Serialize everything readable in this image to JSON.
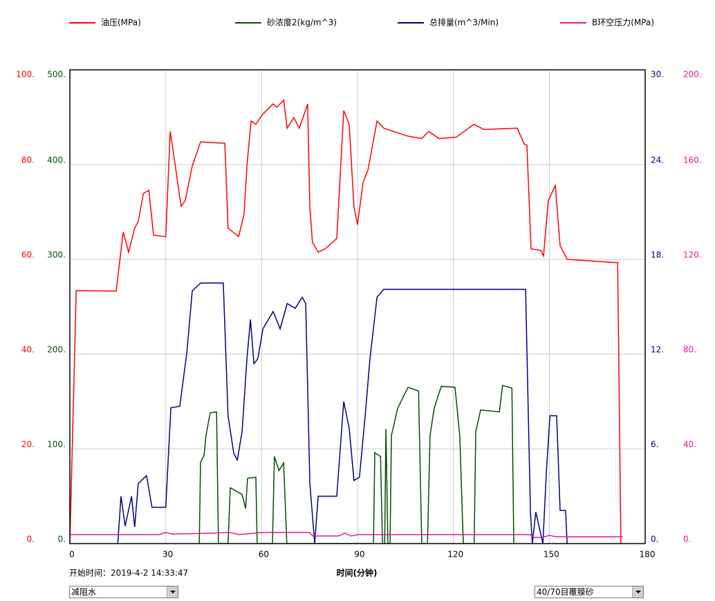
{
  "chart_data": {
    "type": "line",
    "x_label": "时间(分钟)",
    "xlim": [
      0,
      180
    ],
    "xticks": [
      0,
      30,
      60,
      90,
      120,
      150,
      180
    ],
    "ylim": [
      0,
      100
    ],
    "yticks": [
      {
        "value": 0,
        "label": "0."
      },
      {
        "value": 20,
        "label": "20."
      },
      {
        "value": 40,
        "label": "40."
      },
      {
        "value": 60,
        "label": "60."
      },
      {
        "value": 80,
        "label": "80."
      },
      {
        "value": 100,
        "label": "100."
      }
    ],
    "y3lim": [
      0,
      500
    ],
    "y3ticks": [
      {
        "value": 0,
        "label": "0."
      },
      {
        "value": 100,
        "label": "100."
      },
      {
        "value": 200,
        "label": "200."
      },
      {
        "value": 300,
        "label": "300."
      },
      {
        "value": 400,
        "label": "400."
      },
      {
        "value": 500,
        "label": "500."
      }
    ],
    "y2lim": [
      0,
      30
    ],
    "y2ticks": [
      {
        "value": 0,
        "label": "0."
      },
      {
        "value": 6,
        "label": "6."
      },
      {
        "value": 12,
        "label": "12."
      },
      {
        "value": 18,
        "label": "18."
      },
      {
        "value": 24,
        "label": "24."
      },
      {
        "value": 30,
        "label": "30."
      }
    ],
    "y4lim": [
      0,
      200
    ],
    "y4ticks": [
      {
        "value": 0,
        "label": "0."
      },
      {
        "value": 40,
        "label": "40."
      },
      {
        "value": 80,
        "label": "80."
      },
      {
        "value": 120,
        "label": "120."
      },
      {
        "value": 160,
        "label": "160."
      },
      {
        "value": 200,
        "label": "200."
      }
    ],
    "grid": true,
    "series": [
      {
        "name": "油压(MPa)",
        "color": "#ff0000",
        "axis": "y",
        "x": [
          0,
          2,
          14.5,
          16.7,
          18.4,
          20.3,
          21.4,
          23,
          24.7,
          26.2,
          30,
          31.4,
          32.7,
          34.8,
          36.1,
          38.3,
          40.9,
          48.5,
          49.5,
          52.8,
          54.5,
          55.4,
          56.7,
          58.2,
          60.4,
          63.6,
          64.7,
          66.9,
          68,
          70.1,
          71.8,
          74.4,
          75.1,
          75.9,
          77.7,
          79.8,
          83.5,
          85.7,
          87.4,
          88.9,
          90,
          91.7,
          93.3,
          96.1,
          98.2,
          105.8,
          110.1,
          112.3,
          115.5,
          120.9,
          126.4,
          129.6,
          140,
          142.1,
          143,
          144.3,
          147.3,
          148.2,
          149.7,
          151.9,
          153.4,
          155.6,
          171.4,
          172.4
        ],
        "values": [
          0,
          53.4,
          53.3,
          65.8,
          61.5,
          66.6,
          68,
          73.9,
          74.6,
          65.1,
          64.8,
          87,
          81.2,
          71.2,
          72.4,
          79.7,
          84.8,
          84.5,
          66.6,
          64.8,
          69.5,
          79.7,
          89.2,
          88.5,
          90.7,
          92.8,
          92.1,
          93.6,
          87.7,
          89.9,
          87.7,
          92.8,
          71,
          63.6,
          61.5,
          62.2,
          64.4,
          91.4,
          88.5,
          71,
          67.3,
          76.1,
          79,
          89.2,
          87.7,
          86,
          85.5,
          87,
          85.5,
          85.8,
          88.5,
          87.4,
          87.7,
          84.4,
          84.1,
          62.2,
          61.9,
          60.7,
          72.4,
          75.6,
          62.9,
          60,
          59.3,
          0
        ]
      },
      {
        "name": "砂浓度2(kg/m^3)",
        "color": "#004d00",
        "axis": "y3",
        "x": [
          40.5,
          40.9,
          42,
          42.6,
          43.9,
          45.9,
          46.5,
          49.5,
          50.2,
          53.9,
          55,
          55.6,
          58.2,
          58.6,
          63.4,
          64,
          65.4,
          66.9,
          67.9,
          95,
          95.4,
          97.2,
          97.8,
          98.5,
          98.9,
          99.5,
          100.2,
          100.6,
          102.6,
          105.8,
          109.1,
          110.1,
          111.9,
          112.7,
          114,
          116.2,
          120.5,
          122,
          123.1,
          126.5,
          127,
          128.5,
          134.4,
          135.4,
          138.3,
          138.9
        ],
        "values": [
          0,
          86,
          93,
          114,
          138,
          139,
          0,
          0,
          59,
          52,
          37,
          69,
          70,
          0,
          0,
          92,
          77,
          85,
          0,
          0,
          96,
          92,
          0,
          0,
          121,
          0,
          0,
          114,
          143,
          165,
          161,
          0,
          0,
          114,
          143,
          166,
          165,
          114,
          0,
          0,
          118,
          141,
          139,
          167,
          164,
          0
        ]
      },
      {
        "name": "总排量(m^3/Min)",
        "color": "#000080",
        "axis": "y2",
        "x": [
          15,
          16,
          17.3,
          19.3,
          20.3,
          21.4,
          24,
          25.7,
          30,
          31.6,
          34.4,
          36.6,
          38.3,
          40.9,
          48,
          49.5,
          51.3,
          52.4,
          53.9,
          55.4,
          56.5,
          57.6,
          58.8,
          60.4,
          63.6,
          65.8,
          68,
          70.5,
          72.7,
          73.8,
          75.1,
          76.6,
          77.7,
          83.5,
          85.7,
          87.4,
          88.9,
          90.6,
          92.4,
          93.9,
          96.1,
          98.2,
          142.6,
          144.1,
          144.7,
          145.8,
          148,
          149.1,
          150.2,
          152.3,
          153.4,
          155.1,
          155.6
        ],
        "values": [
          0,
          3.0,
          1.1,
          3.0,
          1.05,
          3.8,
          4.3,
          2.3,
          2.3,
          8.6,
          8.7,
          12.1,
          16,
          16.5,
          16.5,
          8.1,
          5.7,
          5.3,
          7.1,
          11.7,
          14.2,
          11.4,
          11.7,
          13.6,
          14.7,
          13.6,
          15.2,
          14.9,
          15.6,
          15.2,
          3.8,
          0,
          3.0,
          3.0,
          9.0,
          7.3,
          4.0,
          4.2,
          8.1,
          11.7,
          15.6,
          16.1,
          16.1,
          2.0,
          0,
          2.0,
          0,
          4.6,
          8.1,
          8.1,
          2.1,
          2.1,
          0
        ]
      },
      {
        "name": "B环空压力(MPa)",
        "color": "#e0189a",
        "axis": "y4",
        "x": [
          0,
          28,
          30,
          32,
          45,
          50,
          53,
          60,
          75,
          76,
          84,
          86,
          88,
          90,
          144,
          145,
          148,
          150,
          152,
          173
        ],
        "values": [
          3.8,
          3.8,
          4.7,
          4,
          4.4,
          4.7,
          3.8,
          4.7,
          4.7,
          3.2,
          3.2,
          4.4,
          3.2,
          3.8,
          3.8,
          2.6,
          2.6,
          3.5,
          2.9,
          2.9
        ]
      }
    ]
  },
  "start_time": "开始时间：2019-4-2 14:33:47",
  "dropdowns": [
    "减阻水",
    "40/70目覆膜砂"
  ]
}
